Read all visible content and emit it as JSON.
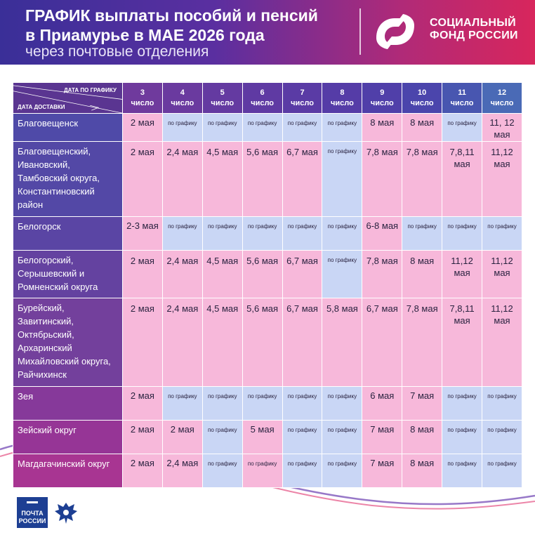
{
  "header": {
    "title_line1": "ГРАФИК выплаты пособий и пенсий",
    "title_line2": "в Приамурье в МАЕ 2026 года",
    "subtitle": "через почтовые отделения",
    "logo_line1": "СОЦИАЛЬНЫЙ",
    "logo_line2": "ФОНД РОССИИ",
    "logo_icon": "social-fund-logo"
  },
  "table": {
    "corner_top": "ДАТА ПО ГРАФИКУ",
    "corner_bottom": "ДАТА ДОСТАВКИ",
    "day_word": "число",
    "days": [
      "3",
      "4",
      "5",
      "6",
      "7",
      "8",
      "9",
      "10",
      "11",
      "12"
    ],
    "rows": [
      {
        "label": "Благовещенск",
        "cells": [
          "2 мая",
          "по графику",
          "по графику",
          "по графику",
          "по графику",
          "по графику",
          "8 мая",
          "8 мая",
          "по графику",
          "11, 12 мая"
        ]
      },
      {
        "label": "Благовещенский, Ивановский, Тамбовский округа, Константиновский район",
        "cells": [
          "2 мая",
          "2,4 мая",
          "4,5 мая",
          "5,6 мая",
          "6,7 мая",
          "по графику",
          "7,8 мая",
          "7,8 мая",
          "7,8,11 мая",
          "11,12 мая"
        ]
      },
      {
        "label": "Белогорск",
        "cells": [
          "2-3 мая",
          "по графику",
          "по графику",
          "по графику",
          "по графику",
          "по графику",
          "6-8 мая",
          "по графику",
          "по графику",
          "по графику"
        ]
      },
      {
        "label": "Белогорский, Серышевский и Ромненский округа",
        "cells": [
          "2 мая",
          "2,4 мая",
          "4,5 мая",
          "5,6 мая",
          "6,7 мая",
          "по графику",
          "7,8 мая",
          "8 мая",
          "11,12 мая",
          "11,12 мая"
        ]
      },
      {
        "label": "Бурейский, Завитинский, Октябрьский, Архаринский Михайловский округа, Райчихинск",
        "cells": [
          "2 мая",
          "2,4 мая",
          "4,5 мая",
          "5,6 мая",
          "6,7 мая",
          "5,8 мая",
          "6,7 мая",
          "7,8 мая",
          "7,8,11 мая",
          "11,12 мая"
        ]
      },
      {
        "label": "Зея",
        "cells": [
          "2 мая",
          "по графику",
          "по графику",
          "по графику",
          "по графику",
          "по графику",
          "6 мая",
          "7 мая",
          "по графику",
          "по графику"
        ]
      },
      {
        "label": "Зейский округ",
        "cells": [
          "2 мая",
          "2 мая",
          "по графику",
          "5 мая",
          "по графику",
          "по графику",
          "7 мая",
          "8 мая",
          "по графику",
          "по графику"
        ]
      },
      {
        "label": "Магдагачинский округ",
        "cells": [
          "2 мая",
          "2,4 мая",
          "по графику",
          "по графику",
          "по графику",
          "по графику",
          "7 мая",
          "8 мая",
          "по графику",
          "по графику"
        ]
      }
    ]
  },
  "footer": {
    "pochta_line1": "ПОЧТА",
    "pochta_line2": "РОССИИ",
    "pochta_icon": "pochta-rossii-logo",
    "eagle_icon": "double-headed-eagle-icon"
  },
  "colors": {
    "pink_cell": "#f7b8da",
    "blue_cell": "#c9d6f5",
    "header_purple": "#5a3591",
    "header_blue": "#4a6ab6",
    "row_label_start": "#4f4aa8",
    "row_label_end": "#a83592"
  }
}
